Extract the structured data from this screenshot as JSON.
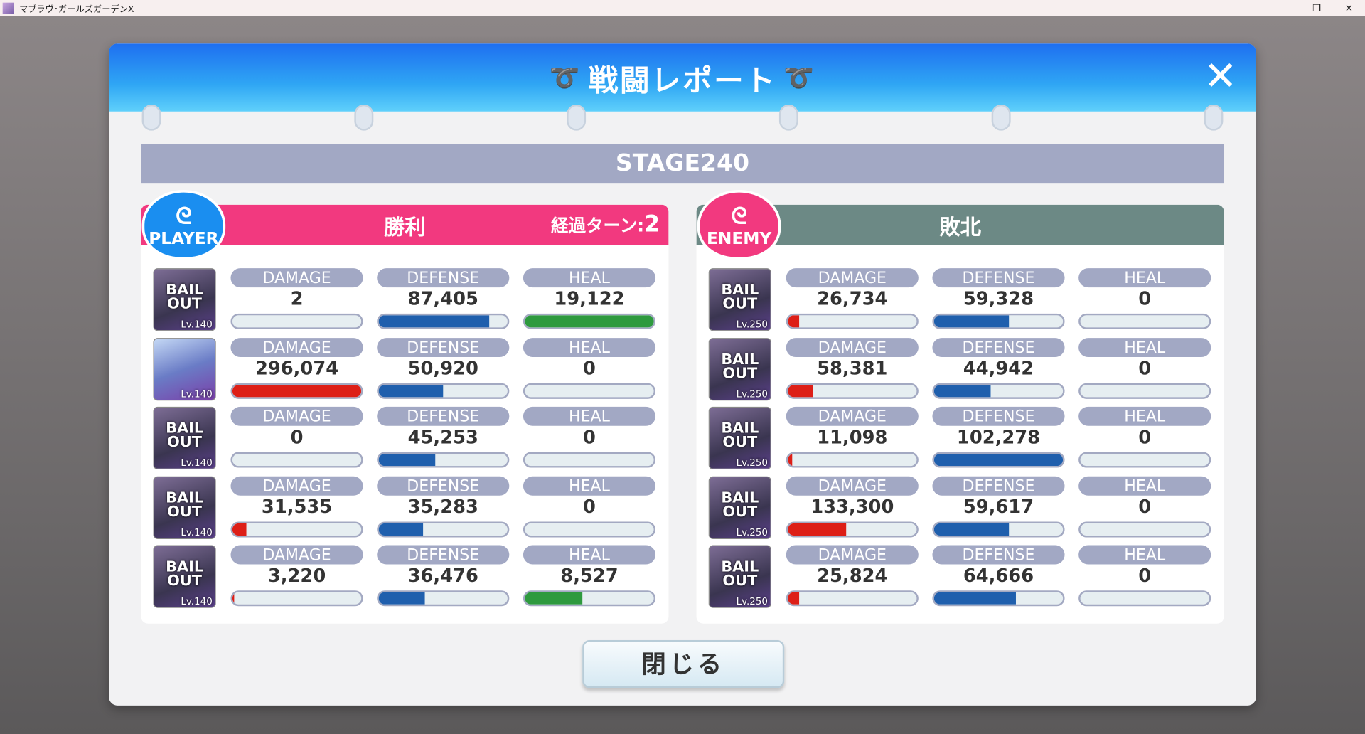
{
  "window": {
    "title": "マブラヴ･ガールズガーデンX",
    "minimize": "–",
    "maximize": "❐",
    "close": "✕"
  },
  "dialog": {
    "title": "戦闘レポート",
    "wing_icon": "wing-icon",
    "close_label": "✕",
    "stage": "STAGE240",
    "close_button": "閉じる"
  },
  "colors": {
    "damage": "#dd1f17",
    "defense": "#1f5fad",
    "heal": "#2e9a3e",
    "player": "#f2397f",
    "enemy": "#6c8985"
  },
  "columns": [
    "DAMAGE",
    "DEFENSE",
    "HEAL"
  ],
  "player": {
    "badge": "PLAYER",
    "result": "勝利",
    "turn_label": "経過ターン:",
    "turn": "2",
    "rows": [
      {
        "portrait": "BAIL OUT",
        "lv": "140",
        "damage": "2",
        "defense": "87,405",
        "heal": "19,122"
      },
      {
        "portrait": "",
        "lv": "140",
        "damage": "296,074",
        "defense": "50,920",
        "heal": "0"
      },
      {
        "portrait": "BAIL OUT",
        "lv": "140",
        "damage": "0",
        "defense": "45,253",
        "heal": "0"
      },
      {
        "portrait": "BAIL OUT",
        "lv": "140",
        "damage": "31,535",
        "defense": "35,283",
        "heal": "0"
      },
      {
        "portrait": "BAIL OUT",
        "lv": "140",
        "damage": "3,220",
        "defense": "36,476",
        "heal": "8,527"
      }
    ]
  },
  "enemy": {
    "badge": "ENEMY",
    "result": "敗北",
    "rows": [
      {
        "portrait": "BAIL OUT",
        "lv": "250",
        "damage": "26,734",
        "defense": "59,328",
        "heal": "0"
      },
      {
        "portrait": "BAIL OUT",
        "lv": "250",
        "damage": "58,381",
        "defense": "44,942",
        "heal": "0"
      },
      {
        "portrait": "BAIL OUT",
        "lv": "250",
        "damage": "11,098",
        "defense": "102,278",
        "heal": "0"
      },
      {
        "portrait": "BAIL OUT",
        "lv": "250",
        "damage": "133,300",
        "defense": "59,617",
        "heal": "0"
      },
      {
        "portrait": "BAIL OUT",
        "lv": "250",
        "damage": "25,824",
        "defense": "64,666",
        "heal": "0"
      }
    ]
  }
}
